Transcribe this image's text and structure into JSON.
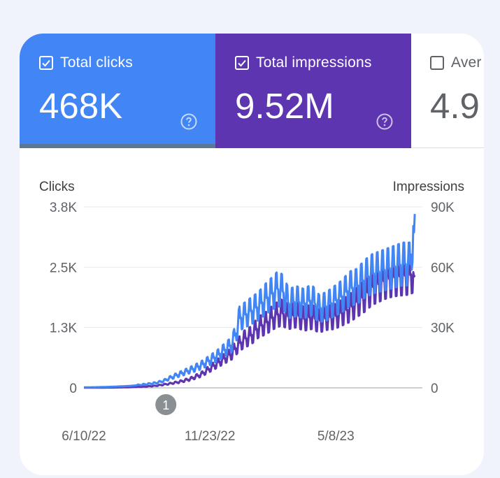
{
  "metrics": [
    {
      "label": "Total clicks",
      "value": "468K",
      "checked": true,
      "color": "#4285f4"
    },
    {
      "label": "Total impressions",
      "value": "9.52M",
      "checked": true,
      "color": "#5e35b1"
    },
    {
      "label": "Aver",
      "value": "4.9",
      "checked": false,
      "color": "#ffffff"
    }
  ],
  "icons": {
    "help": "help-circle-icon",
    "check": "check-icon"
  },
  "chart_data": {
    "type": "line",
    "left_axis_title": "Clicks",
    "right_axis_title": "Impressions",
    "left_ticks": [
      "3.8K",
      "2.5K",
      "1.3K",
      "0"
    ],
    "right_ticks": [
      "90K",
      "60K",
      "30K",
      "0"
    ],
    "left_range": [
      0,
      3800
    ],
    "right_range": [
      0,
      90000
    ],
    "x_ticks": [
      {
        "label": "6/10/22",
        "day": 0
      },
      {
        "label": "11/23/22",
        "day": 166
      },
      {
        "label": "5/8/23",
        "day": 332
      }
    ],
    "x_range_days": [
      0,
      446
    ],
    "annotation": {
      "label": "1",
      "day": 108
    },
    "series": [
      {
        "name": "Total impressions",
        "axis": "right",
        "color": "#5e35b1",
        "points": [
          [
            0,
            50
          ],
          [
            20,
            100
          ],
          [
            40,
            150
          ],
          [
            60,
            300
          ],
          [
            80,
            600
          ],
          [
            95,
            1000
          ],
          [
            110,
            1800
          ],
          [
            125,
            2800
          ],
          [
            140,
            4200
          ],
          [
            155,
            6500
          ],
          [
            165,
            9000
          ],
          [
            175,
            11500
          ],
          [
            185,
            14000
          ],
          [
            195,
            16500
          ],
          [
            200,
            19000
          ],
          [
            210,
            23000
          ],
          [
            220,
            25000
          ],
          [
            230,
            29000
          ],
          [
            240,
            31000
          ],
          [
            250,
            34000
          ],
          [
            260,
            36000
          ],
          [
            270,
            34000
          ],
          [
            280,
            35000
          ],
          [
            290,
            33000
          ],
          [
            300,
            34000
          ],
          [
            310,
            32000
          ],
          [
            320,
            33500
          ],
          [
            330,
            34000
          ],
          [
            340,
            36000
          ],
          [
            350,
            38000
          ],
          [
            360,
            41000
          ],
          [
            370,
            44000
          ],
          [
            380,
            48000
          ],
          [
            390,
            50000
          ],
          [
            400,
            52000
          ],
          [
            410,
            53000
          ],
          [
            420,
            53500
          ],
          [
            430,
            54000
          ],
          [
            436,
            56000
          ]
        ]
      },
      {
        "name": "Total clicks",
        "axis": "left",
        "color": "#4285f4",
        "points": [
          [
            0,
            10
          ],
          [
            20,
            15
          ],
          [
            40,
            25
          ],
          [
            60,
            40
          ],
          [
            80,
            70
          ],
          [
            95,
            100
          ],
          [
            105,
            140
          ],
          [
            115,
            210
          ],
          [
            125,
            270
          ],
          [
            135,
            330
          ],
          [
            145,
            390
          ],
          [
            155,
            460
          ],
          [
            165,
            550
          ],
          [
            175,
            640
          ],
          [
            185,
            760
          ],
          [
            195,
            880
          ],
          [
            200,
            1100
          ],
          [
            205,
            1400
          ],
          [
            210,
            1450
          ],
          [
            220,
            1550
          ],
          [
            230,
            1650
          ],
          [
            240,
            1800
          ],
          [
            250,
            1930
          ],
          [
            255,
            2000
          ],
          [
            262,
            1950
          ],
          [
            270,
            1700
          ],
          [
            280,
            1750
          ],
          [
            290,
            1700
          ],
          [
            300,
            1780
          ],
          [
            310,
            1600
          ],
          [
            320,
            1650
          ],
          [
            330,
            1750
          ],
          [
            340,
            1850
          ],
          [
            350,
            2000
          ],
          [
            360,
            2050
          ],
          [
            370,
            2200
          ],
          [
            380,
            2300
          ],
          [
            390,
            2350
          ],
          [
            400,
            2400
          ],
          [
            410,
            2450
          ],
          [
            420,
            2500
          ],
          [
            430,
            2500
          ],
          [
            436,
            3650
          ]
        ]
      }
    ]
  }
}
